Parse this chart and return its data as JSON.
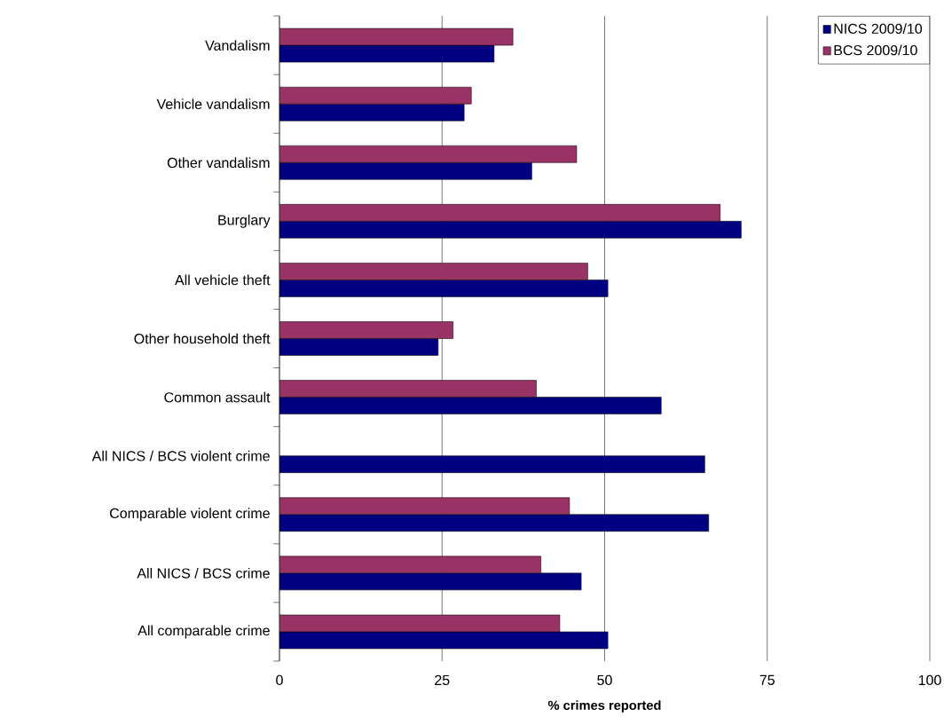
{
  "chart_data": {
    "type": "bar",
    "orientation": "horizontal",
    "xlabel": "% crimes reported",
    "categories": [
      "Vandalism",
      "Vehicle vandalism",
      "Other vandalism",
      "Burglary",
      "All vehicle theft",
      "Other household theft",
      "Common assault",
      "All NICS / BCS violent crime",
      "Comparable violent crime",
      "All NICS / BCS crime",
      "All comparable crime"
    ],
    "series": [
      {
        "name": "NICS 2009/10",
        "color": "#000080",
        "values": [
          33.0,
          28.4,
          38.8,
          71.0,
          50.5,
          24.4,
          58.7,
          65.4,
          66.0,
          46.4,
          50.5
        ]
      },
      {
        "name": "BCS 2009/10",
        "color": "#993366",
        "values": [
          35.9,
          29.5,
          45.7,
          67.8,
          47.4,
          26.7,
          39.5,
          null,
          44.6,
          40.2,
          43.1
        ]
      }
    ],
    "xlim": [
      0,
      100
    ],
    "xticks": [
      0,
      25,
      50,
      75,
      100
    ],
    "grid": "x",
    "legend": "top right"
  }
}
